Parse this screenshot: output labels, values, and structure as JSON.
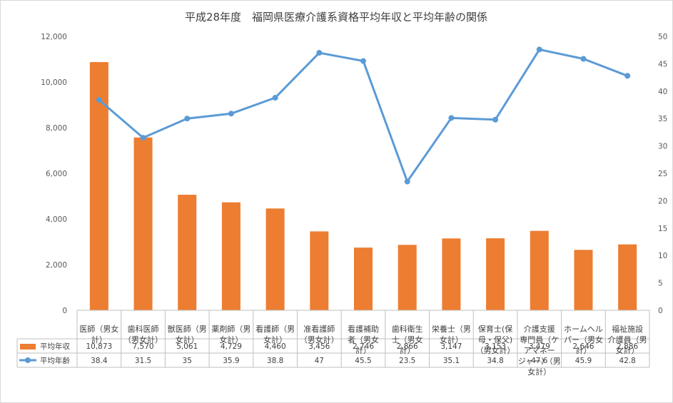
{
  "chart_data": {
    "type": "bar",
    "title": "平成28年度　福岡県医療介護系資格平均年収と平均年齢の関係",
    "categories": [
      [
        "医師（男女",
        "計）"
      ],
      [
        "歯科医師",
        "（男女計）"
      ],
      [
        "獣医師（男",
        "女計）"
      ],
      [
        "薬剤師（男",
        "女計）"
      ],
      [
        "看護師（男",
        "女計）"
      ],
      [
        "准看護師",
        "（男女計）"
      ],
      [
        "看護補助",
        "者（男女",
        "計）"
      ],
      [
        "歯科衛生",
        "士（男女",
        "計）"
      ],
      [
        "栄養士（男",
        "女計）"
      ],
      [
        "保育士(保",
        "母・保父)",
        "（男女計）"
      ],
      [
        "介護支援",
        "専門員（ケ",
        "アマネー",
        "ジャー）（男",
        "女計）"
      ],
      [
        "ホームヘル",
        "パー（男女",
        "計）"
      ],
      [
        "福祉施設",
        "介護員（男",
        "女計）"
      ]
    ],
    "series": [
      {
        "name": "平均年収",
        "chart_type": "bar",
        "axis": "left",
        "color": "#ED7D31",
        "values": [
          10873,
          7570,
          5061,
          4729,
          4460,
          3456,
          2746,
          2866,
          3147,
          3153,
          3479,
          2646,
          2886
        ],
        "labels": [
          "10,873",
          "7,570",
          "5,061",
          "4,729",
          "4,460",
          "3,456",
          "2,746",
          "2,866",
          "3,147",
          "3,153",
          "3,479",
          "2,646",
          "2,886"
        ]
      },
      {
        "name": "平均年齢",
        "chart_type": "line",
        "axis": "right",
        "color": "#5B9BD5",
        "values": [
          38.4,
          31.5,
          35,
          35.9,
          38.8,
          47,
          45.5,
          23.5,
          35.1,
          34.8,
          47.6,
          45.9,
          42.8
        ],
        "labels": [
          "38.4",
          "31.5",
          "35",
          "35.9",
          "38.8",
          "47",
          "45.5",
          "23.5",
          "35.1",
          "34.8",
          "47.6",
          "45.9",
          "42.8"
        ]
      }
    ],
    "y_left": {
      "lim": [
        0,
        12000
      ],
      "ticks": [
        0,
        2000,
        4000,
        6000,
        8000,
        10000,
        12000
      ],
      "tick_labels": [
        "0",
        "2,000",
        "4,000",
        "6,000",
        "8,000",
        "10,000",
        "12,000"
      ]
    },
    "y_right": {
      "lim": [
        0,
        50
      ],
      "ticks": [
        0,
        5,
        10,
        15,
        20,
        25,
        30,
        35,
        40,
        45,
        50
      ],
      "tick_labels": [
        "0",
        "5",
        "10",
        "15",
        "20",
        "25",
        "30",
        "35",
        "40",
        "45",
        "50"
      ]
    },
    "grid": false,
    "legend": "data-table"
  }
}
